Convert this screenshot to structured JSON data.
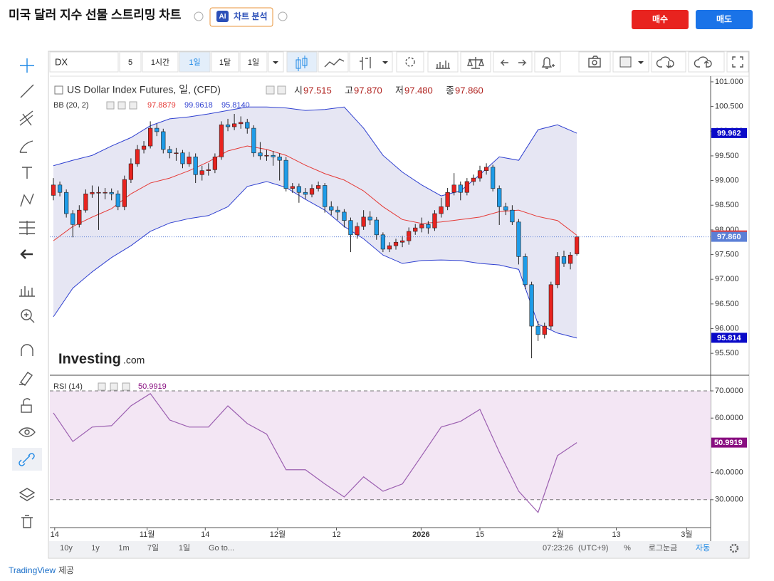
{
  "header": {
    "title": "미국 달러 지수 선물 스트리밍 차트",
    "ai_badge": "AI",
    "ai_button": "차트 분석",
    "buy": "매수",
    "sell": "매도"
  },
  "toolbar": {
    "symbol": "DX",
    "intervals": [
      "5",
      "1시간",
      "1일",
      "1달",
      "1일"
    ],
    "active": 2
  },
  "chart_data": [
    {
      "type": "candlestick",
      "title": "US Dollar Index Futures, 일, (CFD)",
      "ohlc": [
        {
          "name": "시",
          "value": 97.515
        },
        {
          "name": "고",
          "value": 97.87,
          "label": "97.870"
        },
        {
          "name": "저",
          "value": 97.48,
          "label": "97.480"
        },
        {
          "name": "종",
          "value": 97.86,
          "label": "97.860"
        }
      ],
      "watermark": {
        "name": "Investing",
        "suffix": ".com"
      },
      "xlim": [
        -0.55,
        101.7
      ],
      "xticks": [
        {
          "value": 0.2,
          "label": "14"
        },
        {
          "value": 14.5,
          "label": "11월"
        },
        {
          "value": 23.5,
          "label": "14"
        },
        {
          "value": 34.7,
          "label": "12월"
        },
        {
          "value": 43.8,
          "label": "12"
        },
        {
          "value": 56.9,
          "label": "2026"
        },
        {
          "value": 66,
          "label": "15"
        },
        {
          "value": 78.1,
          "label": "2월"
        },
        {
          "value": 87.1,
          "label": "13"
        },
        {
          "value": 98,
          "label": "3월"
        }
      ],
      "ylim": [
        95.07,
        101.1
      ],
      "yticks": [
        {
          "value": 101,
          "label": "101.000"
        },
        {
          "value": 100.5,
          "label": "100.500"
        },
        {
          "value": 100,
          "label": "100.000"
        },
        {
          "value": 99.5,
          "label": "99.500"
        },
        {
          "value": 99,
          "label": "99.000"
        },
        {
          "value": 98.5,
          "label": "98.500"
        },
        {
          "value": 98,
          "label": "98.000"
        },
        {
          "value": 97.5,
          "label": "97.500"
        },
        {
          "value": 97,
          "label": "97.000"
        },
        {
          "value": 96.5,
          "label": "96.500"
        },
        {
          "value": 96,
          "label": "96.000"
        },
        {
          "value": 95.5,
          "label": "95.500"
        }
      ],
      "up_color": "#e8231f",
      "down_color": "#1e9ce8",
      "candles": [
        [
          98.7,
          99.05,
          98.6,
          98.91
        ],
        [
          98.91,
          98.98,
          98.68,
          98.76
        ],
        [
          98.76,
          98.82,
          98.25,
          98.33
        ],
        [
          98.33,
          98.4,
          97.85,
          98.11
        ],
        [
          98.11,
          98.5,
          98.05,
          98.4
        ],
        [
          98.4,
          98.82,
          98.35,
          98.73
        ],
        [
          98.73,
          98.9,
          98.65,
          98.76
        ],
        [
          98.76,
          98.88,
          98.0,
          98.76
        ],
        [
          98.76,
          98.85,
          98.62,
          98.76
        ],
        [
          98.76,
          98.84,
          98.6,
          98.73
        ],
        [
          98.73,
          98.8,
          98.4,
          98.47
        ],
        [
          98.47,
          99.1,
          98.4,
          99.02
        ],
        [
          99.02,
          99.45,
          98.95,
          99.34
        ],
        [
          99.34,
          99.72,
          99.28,
          99.63
        ],
        [
          99.63,
          99.8,
          99.55,
          99.7
        ],
        [
          99.7,
          100.2,
          99.65,
          100.06
        ],
        [
          100.06,
          100.15,
          99.9,
          99.99
        ],
        [
          99.99,
          100.05,
          99.55,
          99.63
        ],
        [
          99.63,
          99.7,
          99.45,
          99.56
        ],
        [
          99.56,
          99.66,
          99.4,
          99.56
        ],
        [
          99.56,
          99.62,
          99.25,
          99.34
        ],
        [
          99.34,
          99.58,
          99.28,
          99.48
        ],
        [
          99.48,
          99.55,
          98.95,
          99.12
        ],
        [
          99.12,
          99.3,
          99.0,
          99.2
        ],
        [
          99.2,
          99.35,
          99.1,
          99.22
        ],
        [
          99.22,
          99.55,
          99.15,
          99.48
        ],
        [
          99.48,
          100.2,
          99.42,
          100.13
        ],
        [
          100.13,
          100.25,
          100.0,
          100.09
        ],
        [
          100.09,
          100.35,
          100.02,
          100.15
        ],
        [
          100.15,
          100.3,
          100.05,
          100.18
        ],
        [
          100.18,
          100.25,
          99.95,
          100.06
        ],
        [
          100.06,
          100.12,
          99.48,
          99.56
        ],
        [
          99.56,
          99.78,
          99.42,
          99.5
        ],
        [
          99.5,
          99.62,
          99.4,
          99.51
        ],
        [
          99.51,
          99.6,
          99.3,
          99.48
        ],
        [
          99.48,
          99.55,
          99.0,
          99.41
        ],
        [
          99.41,
          99.48,
          98.78,
          98.84
        ],
        [
          98.84,
          98.95,
          98.75,
          98.88
        ],
        [
          98.88,
          98.94,
          98.55,
          98.76
        ],
        [
          98.76,
          98.85,
          98.62,
          98.72
        ],
        [
          98.72,
          98.92,
          98.66,
          98.84
        ],
        [
          98.84,
          98.98,
          98.78,
          98.9
        ],
        [
          98.9,
          98.95,
          98.35,
          98.47
        ],
        [
          98.47,
          98.58,
          98.3,
          98.4
        ],
        [
          98.4,
          98.48,
          98.2,
          98.36
        ],
        [
          98.36,
          98.42,
          98.05,
          98.19
        ],
        [
          98.19,
          98.25,
          97.55,
          97.9
        ],
        [
          97.9,
          98.15,
          97.82,
          98.07
        ],
        [
          98.07,
          98.4,
          98.0,
          98.26
        ],
        [
          98.26,
          98.38,
          98.1,
          98.2
        ],
        [
          98.2,
          98.26,
          97.8,
          97.9
        ],
        [
          97.9,
          97.95,
          97.55,
          97.61
        ],
        [
          97.61,
          97.75,
          97.55,
          97.68
        ],
        [
          97.68,
          97.82,
          97.6,
          97.75
        ],
        [
          97.75,
          97.88,
          97.65,
          97.78
        ],
        [
          97.78,
          98.05,
          97.7,
          97.97
        ],
        [
          97.97,
          98.12,
          97.9,
          98.04
        ],
        [
          98.04,
          98.25,
          97.95,
          98.11
        ],
        [
          98.11,
          98.18,
          97.92,
          98.04
        ],
        [
          98.04,
          98.4,
          97.98,
          98.33
        ],
        [
          98.33,
          98.65,
          98.25,
          98.47
        ],
        [
          98.47,
          98.85,
          98.4,
          98.76
        ],
        [
          98.76,
          99.15,
          98.7,
          98.91
        ],
        [
          98.91,
          98.98,
          98.6,
          98.76
        ],
        [
          98.76,
          99.05,
          98.7,
          98.98
        ],
        [
          98.98,
          99.12,
          98.9,
          99.05
        ],
        [
          99.05,
          99.3,
          98.98,
          99.2
        ],
        [
          99.2,
          99.35,
          99.12,
          99.27
        ],
        [
          99.27,
          99.32,
          98.78,
          98.84
        ],
        [
          98.84,
          98.9,
          98.1,
          98.47
        ],
        [
          98.47,
          98.55,
          98.3,
          98.4
        ],
        [
          98.4,
          98.5,
          98.1,
          98.16
        ],
        [
          98.16,
          98.22,
          97.3,
          97.46
        ],
        [
          97.46,
          97.52,
          96.8,
          96.89
        ],
        [
          96.89,
          96.95,
          95.4,
          96.05
        ],
        [
          96.05,
          96.15,
          95.75,
          95.88
        ],
        [
          95.88,
          96.12,
          95.8,
          96.05
        ],
        [
          96.05,
          96.95,
          95.98,
          96.89
        ],
        [
          96.89,
          97.55,
          96.82,
          97.46
        ],
        [
          97.46,
          97.58,
          97.25,
          97.32
        ],
        [
          97.32,
          97.55,
          97.2,
          97.49
        ],
        [
          97.515,
          97.87,
          97.48,
          97.86
        ]
      ],
      "bb": {
        "title": "BB (20, 2)",
        "readout": [
          97.8879,
          99.9618,
          {
            "value": 95.814,
            "label": "95.8140"
          }
        ],
        "colors": [
          "#e53935",
          "#2e3fd0",
          "#2e3fd0"
        ],
        "fill": "#e6e6f3",
        "index": [
          0,
          3,
          6,
          9,
          12,
          15,
          18,
          21,
          24,
          27,
          30,
          33,
          36,
          39,
          42,
          45,
          48,
          51,
          54,
          57,
          60,
          63,
          66,
          69,
          72,
          75,
          78,
          81
        ],
        "basis": [
          97.78,
          98.07,
          98.26,
          98.43,
          98.73,
          98.95,
          99.05,
          99.2,
          99.38,
          99.6,
          99.7,
          99.63,
          99.51,
          99.31,
          99.14,
          99.01,
          98.79,
          98.47,
          98.21,
          98.13,
          98.16,
          98.21,
          98.26,
          98.37,
          98.4,
          98.27,
          98.19,
          97.89
        ],
        "upper": [
          99.3,
          99.41,
          99.51,
          99.7,
          99.87,
          100.11,
          100.25,
          100.29,
          100.35,
          100.42,
          100.49,
          100.49,
          100.47,
          100.42,
          100.44,
          100.49,
          100.06,
          99.51,
          99.17,
          98.91,
          98.69,
          98.79,
          99.12,
          99.48,
          99.41,
          100.03,
          100.13,
          99.96
        ],
        "lower": [
          96.24,
          96.82,
          97.15,
          97.44,
          97.68,
          97.97,
          98.14,
          98.23,
          98.29,
          98.47,
          98.88,
          98.98,
          98.86,
          98.62,
          98.4,
          98.07,
          97.82,
          97.49,
          97.32,
          97.38,
          97.39,
          97.38,
          97.32,
          97.29,
          97.2,
          96.09,
          95.91,
          95.81
        ]
      },
      "price_tags": [
        {
          "value": 99.962,
          "color": "#0a0ac8"
        },
        {
          "value": 97.888,
          "color": "#e53935"
        },
        {
          "value": 97.86,
          "label": "97.860",
          "color": "#5b7fd6"
        },
        {
          "value": 95.814,
          "color": "#0a0ac8"
        }
      ]
    },
    {
      "type": "line",
      "title": "RSI (14)",
      "readout": 50.9919,
      "color": "#9b5fb0",
      "tag_color": "#880e80",
      "band_fill": "#f3e6f4",
      "levels": [
        70,
        30
      ],
      "xlim": [
        -0.55,
        101.7
      ],
      "ylim": [
        20,
        75.5
      ],
      "yticks": [
        {
          "value": 70,
          "label": "70.0000"
        },
        {
          "value": 60,
          "label": "60.0000"
        },
        {
          "value": 40,
          "label": "40.0000"
        },
        {
          "value": 30,
          "label": "30.0000"
        }
      ],
      "index": [
        0,
        3,
        6,
        9,
        12,
        15,
        18,
        21,
        24,
        27,
        30,
        33,
        36,
        39,
        42,
        45,
        48,
        51,
        54,
        57,
        60,
        63,
        66,
        69,
        72,
        75,
        78,
        81
      ],
      "values": [
        61.9,
        51.4,
        56.7,
        57.2,
        64.5,
        69.0,
        59.3,
        56.7,
        56.7,
        64.5,
        58.0,
        54.1,
        41.0,
        41.0,
        35.8,
        31.0,
        38.4,
        33.1,
        35.8,
        46.2,
        56.7,
        58.8,
        63.2,
        47.5,
        33.1,
        25.3,
        46.2,
        50.9919
      ]
    }
  ],
  "bottom_bar": {
    "ranges": [
      "10y",
      "1y",
      "1m",
      "7일",
      "1일"
    ],
    "goto": "Go to...",
    "time": "07:23:26",
    "timezone": "(UTC+9)",
    "percent": "%",
    "log": "로그눈금",
    "auto": "자동"
  },
  "footer": {
    "brand": "TradingView",
    "suffix": "제공"
  }
}
